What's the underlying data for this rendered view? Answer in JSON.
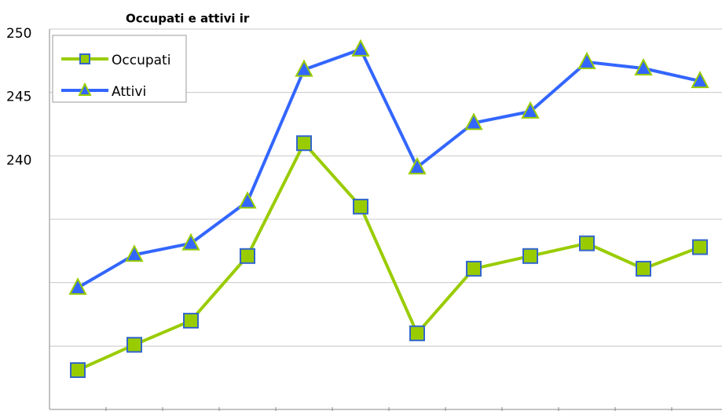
{
  "chart_data": {
    "type": "line",
    "title": "Occupati e attivi ir",
    "categories": [
      null,
      null,
      null,
      null,
      null,
      null,
      null,
      null,
      null,
      null,
      null,
      null
    ],
    "series": [
      {
        "name": "Occupati",
        "color": "#99cc00",
        "marker": "square",
        "marker_edge": "#3366cc",
        "values": [
          223.1,
          225.1,
          227.0,
          232.1,
          241.0,
          236.0,
          226.0,
          231.1,
          232.1,
          233.1,
          231.1,
          232.8
        ]
      },
      {
        "name": "Attivi",
        "color": "#3366ff",
        "marker": "triangle",
        "marker_edge": "#99cc00",
        "values": [
          229.6,
          232.2,
          233.1,
          236.4,
          246.8,
          248.4,
          239.1,
          242.6,
          243.5,
          247.4,
          246.9,
          245.9
        ]
      }
    ],
    "ylim": [
      220,
      250
    ],
    "yticks": [
      240,
      245,
      250
    ],
    "ygrid": [
      220,
      225,
      230,
      235,
      240,
      245,
      250
    ],
    "grid": true,
    "legend": "upper left"
  }
}
